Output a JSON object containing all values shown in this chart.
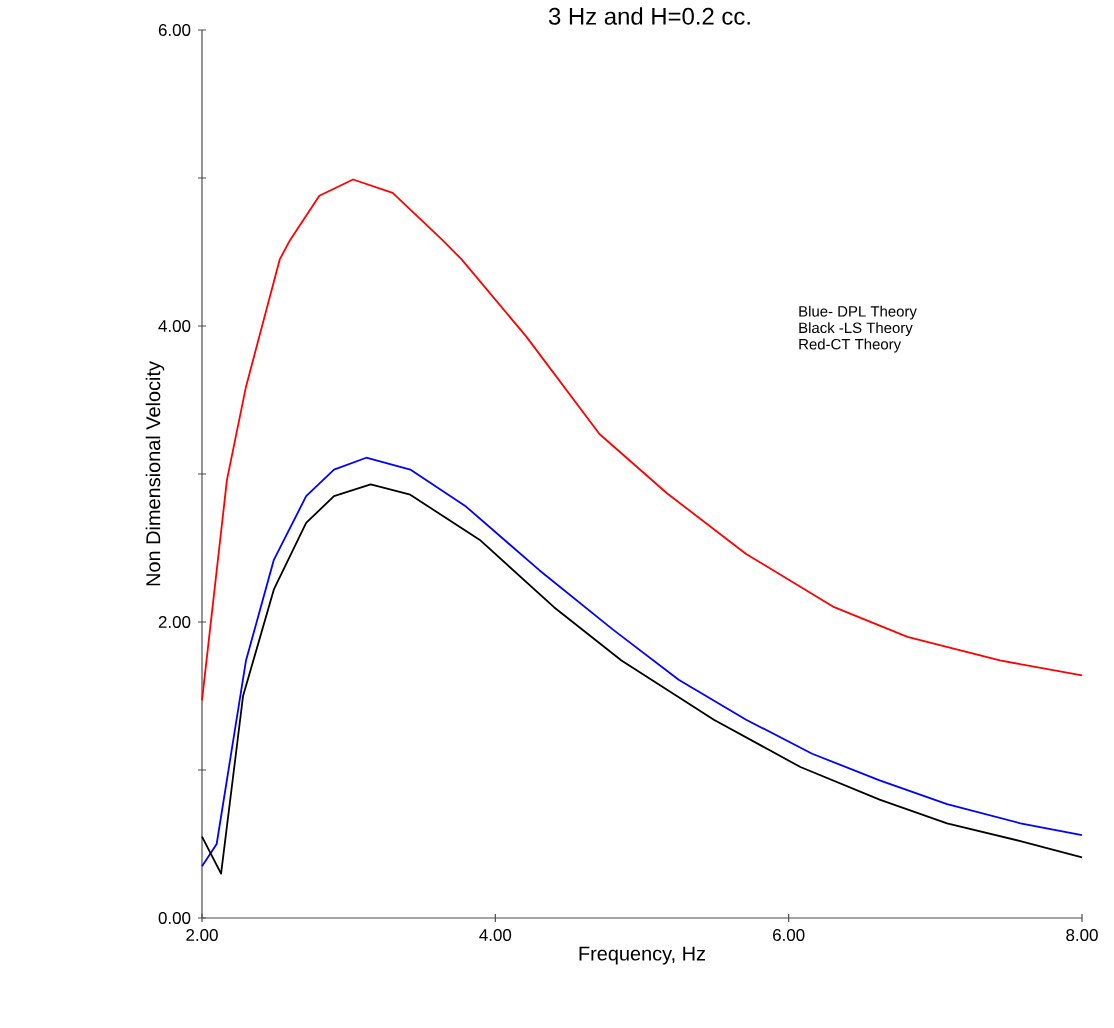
{
  "chart_data": {
    "type": "line",
    "title": "3 Hz and H=0.2 cc.",
    "xlabel": "Frequency, Hz",
    "ylabel": "Non Dimensional Velocity",
    "xlim": [
      2,
      8
    ],
    "ylim": [
      0,
      6
    ],
    "xticks": [
      {
        "value": 2,
        "label": "2.00"
      },
      {
        "value": 4,
        "label": "4.00"
      },
      {
        "value": 6,
        "label": "6.00"
      },
      {
        "value": 8,
        "label": "8.00"
      }
    ],
    "yticks": [
      {
        "value": 0,
        "label": "0.00"
      },
      {
        "value": 1,
        "label": null
      },
      {
        "value": 2,
        "label": "2.00"
      },
      {
        "value": 3,
        "label": null
      },
      {
        "value": 4,
        "label": "4.00"
      },
      {
        "value": 5,
        "label": null
      },
      {
        "value": 6,
        "label": "6.00"
      }
    ],
    "annotations": [
      "Blue- DPL Theory",
      "Black -LS Theory",
      "Red-CT Theory"
    ],
    "grid": false,
    "marker": "none",
    "line_style": "solid",
    "series": [
      {
        "color": "#ff0000",
        "x": [
          2.0,
          2.17,
          2.3,
          2.53,
          2.6,
          2.8,
          3.03,
          3.3,
          3.64,
          3.77,
          4.21,
          4.71,
          5.17,
          5.71,
          6.31,
          6.81,
          7.44,
          8.0
        ],
        "values": [
          1.47,
          2.96,
          3.59,
          4.45,
          4.58,
          4.88,
          4.99,
          4.9,
          4.58,
          4.45,
          3.93,
          3.27,
          2.87,
          2.46,
          2.1,
          1.9,
          1.74,
          1.64
        ]
      },
      {
        "color": "#0000ff",
        "x": [
          2.0,
          2.1,
          2.3,
          2.49,
          2.71,
          2.9,
          3.12,
          3.42,
          3.8,
          4.3,
          4.8,
          5.25,
          5.71,
          6.16,
          6.62,
          7.08,
          7.58,
          8.0
        ],
        "values": [
          0.35,
          0.5,
          1.74,
          2.42,
          2.85,
          3.03,
          3.11,
          3.03,
          2.78,
          2.35,
          1.95,
          1.61,
          1.34,
          1.11,
          0.93,
          0.77,
          0.64,
          0.56
        ]
      },
      {
        "color": "#000000",
        "x": [
          2.0,
          2.13,
          2.28,
          2.49,
          2.71,
          2.9,
          3.15,
          3.42,
          3.9,
          4.4,
          4.86,
          5.49,
          6.08,
          6.62,
          7.08,
          7.58,
          8.0
        ],
        "values": [
          0.55,
          0.3,
          1.5,
          2.22,
          2.67,
          2.85,
          2.93,
          2.86,
          2.55,
          2.1,
          1.74,
          1.34,
          1.02,
          0.8,
          0.64,
          0.52,
          0.41
        ]
      }
    ]
  }
}
